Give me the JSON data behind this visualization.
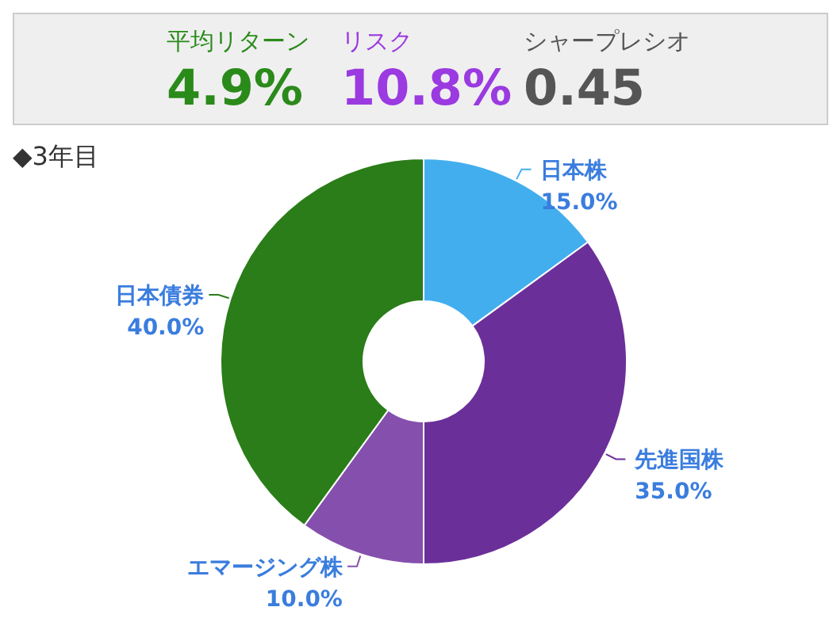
{
  "chart_data": {
    "type": "donut",
    "title": "◆3年目",
    "annotations": [
      "平均リターン",
      "4.9%",
      "リスク",
      "10.8%",
      "シャープレシオ",
      "0.45"
    ],
    "categories": [
      "日本株",
      "先進国株",
      "エマージング株",
      "日本債券"
    ],
    "values": [
      15,
      35,
      10,
      40
    ],
    "value_labels": [
      "15.0%",
      "35.0%",
      "10.0%",
      "40.0%"
    ],
    "colors": [
      "#42aeee",
      "#6b2f9a",
      "#8550ad",
      "#2a7d18"
    ]
  }
}
